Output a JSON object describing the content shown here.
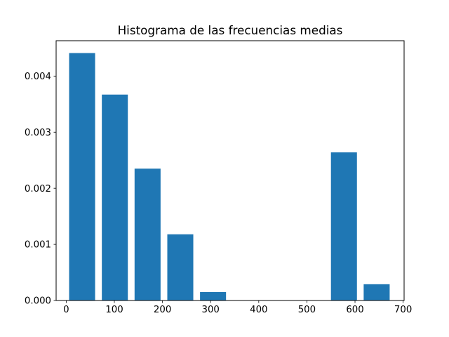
{
  "chart_data": {
    "type": "bar",
    "title": "Histograma de las frecuencias medias",
    "xlabel": "",
    "ylabel": "",
    "xlim": [
      -21,
      702
    ],
    "ylim": [
      0,
      0.00463
    ],
    "xticks": [
      0,
      100,
      200,
      300,
      400,
      500,
      600,
      700
    ],
    "xtick_labels": [
      "0",
      "100",
      "200",
      "300",
      "400",
      "500",
      "600",
      "700"
    ],
    "yticks": [
      0,
      0.001,
      0.002,
      0.003,
      0.004
    ],
    "ytick_labels": [
      "0.000",
      "0.001",
      "0.002",
      "0.003",
      "0.004"
    ],
    "bar_width": 54,
    "x": [
      33,
      101,
      169,
      237,
      305,
      373,
      441,
      509,
      577,
      645
    ],
    "values": [
      0.00441,
      0.00367,
      0.00235,
      0.00118,
      0.00015,
      0,
      0,
      0,
      0.00264,
      0.00029
    ],
    "grid": false,
    "legend": "none"
  },
  "colors": {
    "bar": "#1f77b4",
    "axes": "#000000",
    "background": "#ffffff"
  }
}
